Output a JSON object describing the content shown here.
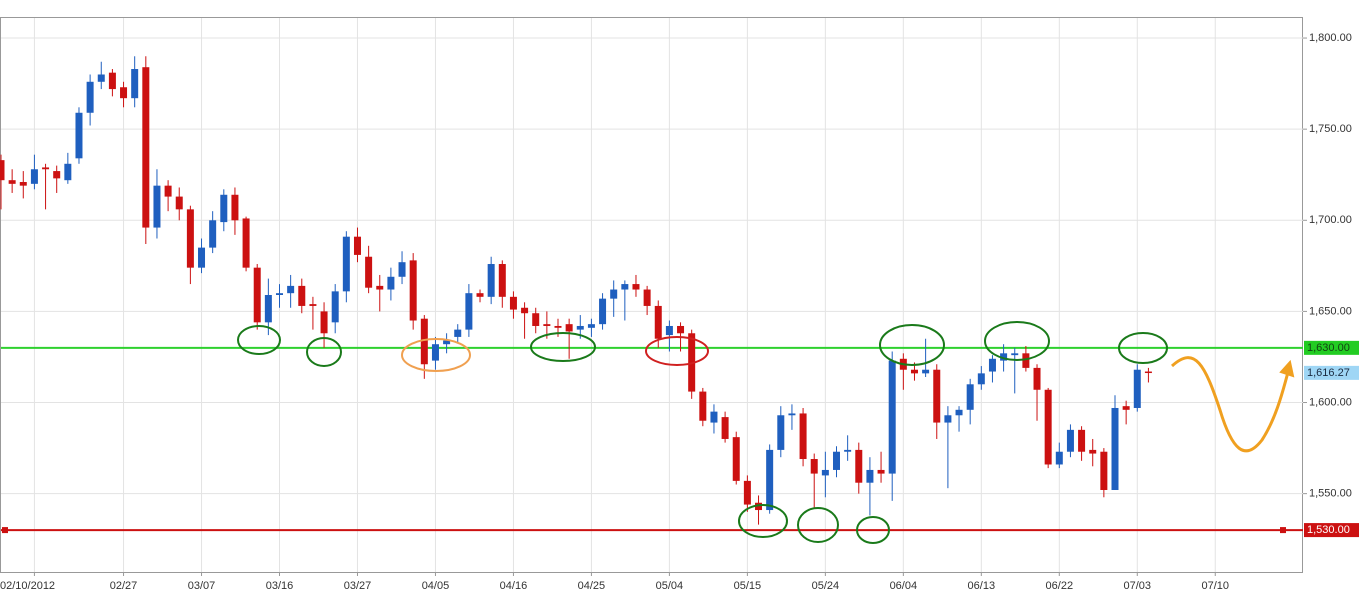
{
  "chart_data": {
    "type": "candlestick",
    "up_color": "#1f5fbf",
    "down_color": "#cc1111",
    "grid": true,
    "categories": [
      null,
      null,
      null,
      "02/10/2012",
      null,
      null,
      null,
      null,
      null,
      null,
      null,
      "02/27",
      null,
      null,
      null,
      null,
      null,
      null,
      "03/07",
      null,
      null,
      null,
      null,
      null,
      null,
      "03/16",
      null,
      null,
      null,
      null,
      null,
      null,
      "03/27",
      null,
      null,
      null,
      null,
      null,
      null,
      "04/05",
      null,
      null,
      null,
      null,
      null,
      null,
      "04/16",
      null,
      null,
      null,
      null,
      null,
      null,
      "04/25",
      null,
      null,
      null,
      null,
      null,
      null,
      "05/04",
      null,
      null,
      null,
      null,
      null,
      null,
      "05/15",
      null,
      null,
      null,
      null,
      null,
      null,
      "05/24",
      null,
      null,
      null,
      null,
      null,
      null,
      "06/04",
      null,
      null,
      null,
      null,
      null,
      null,
      "06/13",
      null,
      null,
      null,
      null,
      null,
      null,
      "06/22",
      null,
      null,
      null,
      null,
      null,
      null,
      "07/03",
      null,
      null,
      null,
      null,
      null,
      null,
      "07/10",
      null,
      null,
      null,
      null,
      null,
      null,
      null
    ],
    "open": [
      1733,
      1722,
      1721,
      1720,
      1729,
      1727,
      1722,
      1734,
      1759,
      1776,
      1781,
      1773,
      1767,
      1784,
      1696,
      1719,
      1713,
      1706,
      1674,
      1685,
      1699,
      1714,
      1701,
      1674,
      1644,
      1659,
      1660,
      1664,
      1654,
      1650,
      1644,
      1661,
      1691,
      1680,
      1664,
      1662,
      1669,
      1678,
      1646,
      1623,
      1632,
      1636,
      1640,
      1660,
      1658,
      1676,
      1658,
      1652,
      1649,
      1643,
      1642,
      1643,
      1640,
      1641,
      1643,
      1657,
      1662,
      1665,
      1662,
      1653,
      1637,
      1642,
      1638,
      1606,
      1589,
      1592,
      1581,
      1557,
      1545,
      1541,
      1574,
      1593,
      1594,
      1569,
      1560,
      1563,
      1573,
      1574,
      1556,
      1563,
      1561,
      1624,
      1618,
      1616,
      1618,
      1589,
      1593,
      1596,
      1610,
      1617,
      1623,
      1626,
      1627,
      1619,
      1607,
      1566,
      1573,
      1585,
      1574,
      1573,
      1552,
      1598,
      1597,
      1617,
      null,
      null,
      null,
      null,
      null,
      null,
      null,
      null,
      null,
      null,
      null,
      null,
      null
    ],
    "high": [
      1736,
      1728,
      1727,
      1736,
      1731,
      1730,
      1737,
      1762,
      1780,
      1787,
      1783,
      1776,
      1790,
      1790,
      1728,
      1722,
      1718,
      1708,
      1690,
      1705,
      1717,
      1718,
      1702,
      1676,
      1668,
      1665,
      1670,
      1668,
      1658,
      1655,
      1665,
      1694,
      1696,
      1686,
      1670,
      1674,
      1683,
      1682,
      1648,
      1636,
      1638,
      1643,
      1665,
      1662,
      1680,
      1678,
      1661,
      1655,
      1652,
      1650,
      1646,
      1646,
      1648,
      1646,
      1660,
      1667,
      1667,
      1670,
      1664,
      1656,
      1645,
      1644,
      1640,
      1608,
      1599,
      1595,
      1584,
      1560,
      1549,
      1577,
      1598,
      1599,
      1597,
      1572,
      1573,
      1576,
      1582,
      1578,
      1570,
      1573,
      1628,
      1627,
      1622,
      1635,
      1621,
      1598,
      1598,
      1613,
      1620,
      1626,
      1632,
      1630,
      1631,
      1621,
      1608,
      1578,
      1588,
      1587,
      1580,
      1575,
      1604,
      1601,
      1621,
      1619,
      null,
      null,
      null,
      null,
      null,
      null,
      null,
      null,
      null,
      null,
      null,
      null,
      null
    ],
    "low": [
      1706,
      1715,
      1712,
      1717,
      1706,
      1715,
      1720,
      1731,
      1752,
      1772,
      1768,
      1762,
      1762,
      1687,
      1690,
      1705,
      1700,
      1665,
      1671,
      1682,
      1694,
      1692,
      1672,
      1640,
      1637,
      1652,
      1652,
      1649,
      1640,
      1630,
      1638,
      1655,
      1677,
      1660,
      1650,
      1656,
      1665,
      1640,
      1613,
      1618,
      1627,
      1633,
      1636,
      1655,
      1654,
      1652,
      1646,
      1635,
      1638,
      1635,
      1636,
      1624,
      1635,
      1636,
      1640,
      1647,
      1645,
      1658,
      1648,
      1630,
      1628,
      1628,
      1602,
      1587,
      1583,
      1578,
      1555,
      1540,
      1533,
      1539,
      1570,
      1585,
      1565,
      1542,
      1548,
      1559,
      1568,
      1550,
      1538,
      1556,
      1546,
      1607,
      1612,
      1614,
      1580,
      1553,
      1584,
      1588,
      1607,
      1611,
      1617,
      1605,
      1617,
      1590,
      1564,
      1564,
      1570,
      1568,
      1565,
      1548,
      1552,
      1588,
      1595,
      1611,
      null,
      null,
      null,
      null,
      null,
      null,
      null,
      null,
      null,
      null,
      null,
      null,
      null
    ],
    "close": [
      1722,
      1720,
      1719,
      1728,
      1728,
      1723,
      1731,
      1759,
      1776,
      1780,
      1772,
      1767,
      1783,
      1696,
      1719,
      1713,
      1706,
      1674,
      1685,
      1700,
      1714,
      1700,
      1674,
      1644,
      1659,
      1660,
      1664,
      1653,
      1653,
      1638,
      1661,
      1691,
      1681,
      1663,
      1662,
      1669,
      1677,
      1645,
      1621,
      1632,
      1634,
      1640,
      1660,
      1658,
      1676,
      1658,
      1651,
      1649,
      1642,
      1642,
      1641,
      1639,
      1642,
      1643,
      1657,
      1662,
      1665,
      1662,
      1653,
      1635,
      1642,
      1638,
      1606,
      1590,
      1595,
      1580,
      1557,
      1544,
      1541,
      1574,
      1593,
      1594,
      1569,
      1561,
      1563,
      1573,
      1574,
      1556,
      1563,
      1561,
      1623,
      1618,
      1616,
      1618,
      1589,
      1593,
      1596,
      1610,
      1616,
      1624,
      1627,
      1627,
      1619,
      1607,
      1566,
      1573,
      1585,
      1573,
      1572,
      1552,
      1597,
      1596,
      1618,
      1616.27,
      null,
      null,
      null,
      null,
      null,
      null,
      null,
      null,
      null,
      null,
      null,
      null,
      null
    ],
    "ylim": [
      1507,
      1811
    ],
    "yticks": [
      {
        "value": 1550,
        "label": "1,550.00"
      },
      {
        "value": 1600,
        "label": "1,600.00"
      },
      {
        "value": 1650,
        "label": "1,650.00"
      },
      {
        "value": 1700,
        "label": "1,700.00"
      },
      {
        "value": 1750,
        "label": "1,750.00"
      },
      {
        "value": 1800,
        "label": "1,800.00"
      }
    ],
    "levels": [
      {
        "value": 1630,
        "label": "1,630.00",
        "color": "#2fd12f",
        "label_color": "#22cc22",
        "text_color": "#114411"
      },
      {
        "value": 1530,
        "label": "1,530.00",
        "color": "#cc1111",
        "label_color": "#cc1111",
        "text_color": "#ffffff"
      }
    ],
    "last_price": {
      "value": 1616.27,
      "label": "1,616.27",
      "label_color": "#9fd6f5",
      "text_color": "#1a2a40"
    }
  }
}
